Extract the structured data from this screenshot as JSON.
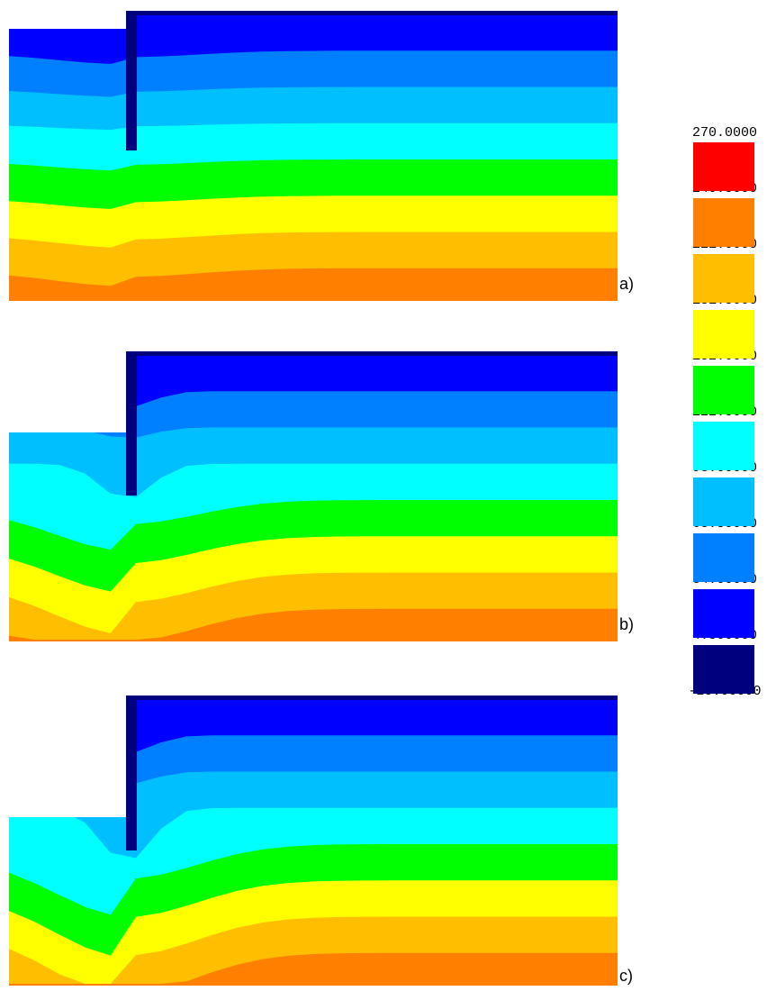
{
  "panels": [
    {
      "label": "a)",
      "stage": 0
    },
    {
      "label": "b)",
      "stage": 1
    },
    {
      "label": "c)",
      "stage": 2
    }
  ],
  "legend": {
    "values": [
      "270.0000",
      "240.5000",
      "211.0000",
      "181.5000",
      "152.0000",
      "122.5000",
      "93.00000",
      "63.50000",
      "34.00000",
      "4.500000",
      "-25.00000"
    ],
    "colors": [
      "#ff0000",
      "#ff7f00",
      "#ffbf00",
      "#ffff00",
      "#00ff00",
      "#00ffff",
      "#00bfff",
      "#007fff",
      "#0000ff",
      "#00007f"
    ]
  }
}
